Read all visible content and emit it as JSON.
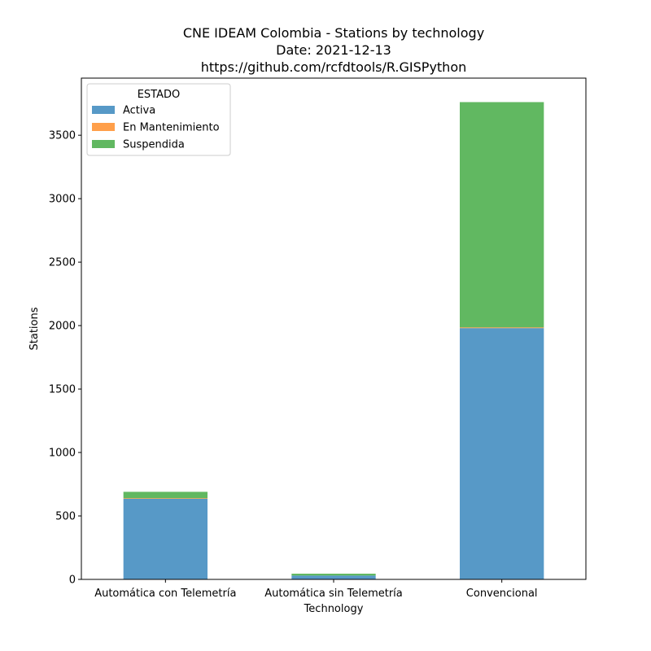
{
  "chart_data": {
    "type": "bar",
    "stacked": true,
    "title": [
      "CNE IDEAM Colombia -  Stations by technology",
      "Date: 2021-12-13",
      "https://github.com/rcfdtools/R.GISPython"
    ],
    "xlabel": "Technology",
    "ylabel": "Stations",
    "categories": [
      "Automática con Telemetría",
      "Automática sin Telemetría",
      "Convencional"
    ],
    "series": [
      {
        "name": "Activa",
        "values": [
          635,
          30,
          1980
        ],
        "color": "#1f77b4"
      },
      {
        "name": "En Mantenimiento",
        "values": [
          5,
          0,
          6
        ],
        "color": "#ff7f0e"
      },
      {
        "name": "Suspendida",
        "values": [
          50,
          15,
          1775
        ],
        "color": "#2ca02c"
      }
    ],
    "ylim": [
      0,
      3950
    ],
    "yticks": [
      0,
      500,
      1000,
      1500,
      2000,
      2500,
      3000,
      3500
    ],
    "grid": false,
    "legend": {
      "title": "ESTADO",
      "placement": "top-left"
    }
  }
}
